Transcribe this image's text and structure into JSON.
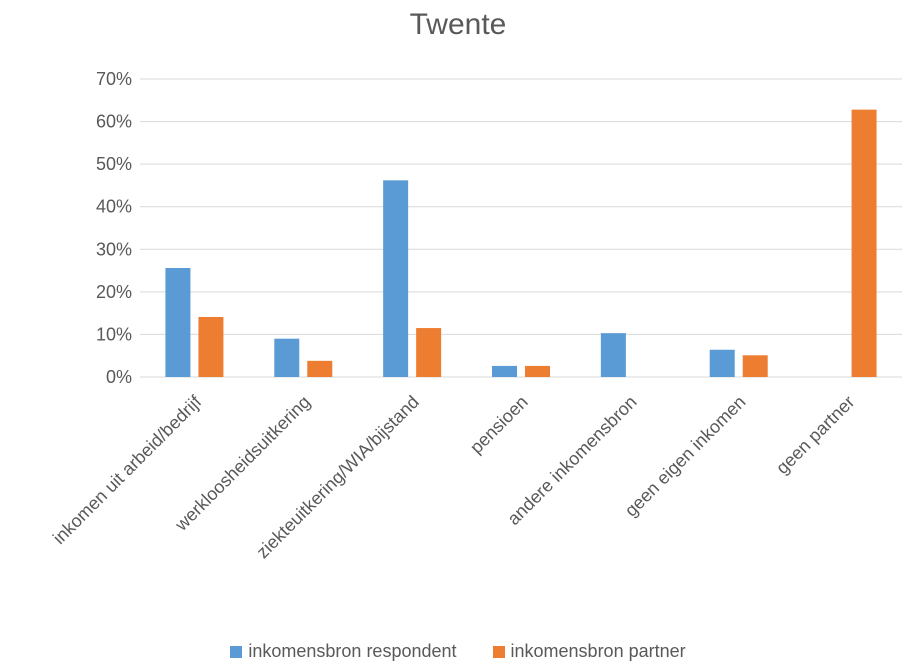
{
  "chart_data": {
    "type": "bar",
    "title": "Twente",
    "categories": [
      "inkomen uit arbeid/bedrijf",
      "werkloosheidsuitkering",
      "ziekteuitkering/WIA/bijstand",
      "pensioen",
      "andere inkomensbron",
      "geen eigen inkomen",
      "geen partner"
    ],
    "series": [
      {
        "name": "inkomensbron respondent",
        "color": "#5b9bd5",
        "values": [
          0.256,
          0.09,
          0.462,
          0.026,
          0.103,
          0.064,
          null
        ]
      },
      {
        "name": "inkomensbron partner",
        "color": "#ed7d31",
        "values": [
          0.141,
          0.038,
          0.115,
          0.026,
          null,
          0.051,
          0.628
        ]
      }
    ],
    "ylim": [
      0,
      0.7
    ],
    "yticks": [
      "0%",
      "10%",
      "20%",
      "30%",
      "40%",
      "50%",
      "60%",
      "70%"
    ],
    "grid": true,
    "legend": "bottom"
  }
}
